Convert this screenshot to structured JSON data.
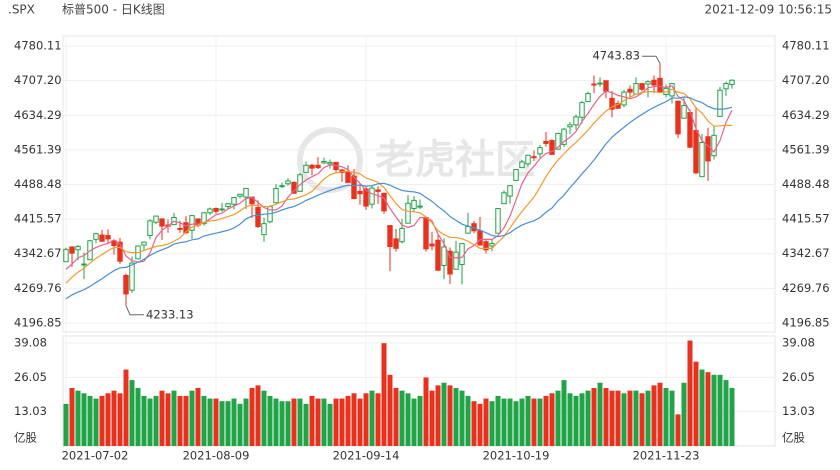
{
  "header": {
    "symbol": ".SPX",
    "name": "标普500 - 日K线图",
    "time": "2021-12-09 10:56:15"
  },
  "watermark": "老虎社区",
  "chart_data": [
    {
      "type": "candlestick",
      "up_color": "#21a348",
      "down_color": "#e8321e",
      "ylim": [
        4196.85,
        4780.11
      ],
      "yticks": [
        4196.85,
        4269.76,
        4342.67,
        4415.57,
        4488.48,
        4561.39,
        4634.29,
        {
          "value": 4707.2,
          "label": "4707.20"
        },
        4780.11
      ],
      "grid": true,
      "x": [
        "2021-07-02",
        null,
        null,
        null,
        null,
        null,
        null,
        null,
        null,
        null,
        null,
        null,
        null,
        null,
        null,
        null,
        null,
        null,
        null,
        null,
        null,
        null,
        null,
        null,
        null,
        "2021-08-09",
        null,
        null,
        null,
        null,
        null,
        null,
        null,
        null,
        null,
        null,
        null,
        null,
        null,
        null,
        null,
        null,
        null,
        null,
        null,
        null,
        null,
        null,
        null,
        null,
        "2021-09-14",
        null,
        null,
        null,
        null,
        null,
        null,
        null,
        null,
        null,
        null,
        null,
        null,
        null,
        null,
        null,
        null,
        null,
        null,
        null,
        null,
        null,
        null,
        null,
        null,
        "2021-10-19",
        null,
        null,
        null,
        null,
        null,
        null,
        null,
        null,
        null,
        null,
        null,
        null,
        null,
        null,
        null,
        null,
        null,
        null,
        null,
        null,
        null,
        null,
        null,
        null,
        "2021-11-23",
        null,
        null,
        null,
        null,
        null,
        null,
        null,
        null,
        null,
        null,
        null
      ],
      "ohlc": [
        [
          4326,
          4355,
          4326,
          4352
        ],
        [
          4357,
          4357,
          4315,
          4344
        ],
        [
          4351,
          4361,
          4329,
          4358
        ],
        [
          4321,
          4345,
          4289,
          4321
        ],
        [
          4330,
          4372,
          4330,
          4370
        ],
        [
          4373,
          4387,
          4365,
          4385
        ],
        [
          4382,
          4393,
          4368,
          4369
        ],
        [
          4381,
          4394,
          4363,
          4374
        ],
        [
          4370,
          4370,
          4341,
          4360
        ],
        [
          4367,
          4376,
          4321,
          4327
        ],
        [
          4297,
          4301,
          4233.13,
          4258
        ],
        [
          4266,
          4337,
          4260,
          4323
        ],
        [
          4332,
          4359,
          4331,
          4359
        ],
        [
          4361,
          4369,
          4350,
          4367
        ],
        [
          4381,
          4415,
          4373,
          4412
        ],
        [
          4409,
          4422,
          4405,
          4422
        ],
        [
          4416,
          4416,
          4372,
          4401
        ],
        [
          4403,
          4415,
          4387,
          4401
        ],
        [
          4404,
          4429,
          4404,
          4419
        ],
        [
          4396,
          4412,
          4387,
          4395
        ],
        [
          4408,
          4422,
          4385,
          4387
        ],
        [
          4392,
          4424,
          4374,
          4423
        ],
        [
          4416,
          4416,
          4399,
          4403
        ],
        [
          4406,
          4430,
          4402,
          4429
        ],
        [
          4429,
          4440,
          4424,
          4437
        ],
        [
          4438,
          4440,
          4427,
          4432
        ],
        [
          4436,
          4450,
          4431,
          4437
        ],
        [
          4442,
          4449,
          4437,
          4448
        ],
        [
          4447,
          4461,
          4436,
          4461
        ],
        [
          4464,
          4468,
          4459,
          4468
        ],
        [
          4462,
          4480,
          4437,
          4480
        ],
        [
          4462,
          4462,
          4418,
          4448
        ],
        [
          4440,
          4455,
          4397,
          4400
        ],
        [
          4383,
          4419,
          4368,
          4406
        ],
        [
          4410,
          4445,
          4407,
          4442
        ],
        [
          4450,
          4489,
          4450,
          4480
        ],
        [
          4485,
          4493,
          4481,
          4486
        ],
        [
          4490,
          4502,
          4486,
          4496
        ],
        [
          4493,
          4495,
          4469,
          4470
        ],
        [
          4474,
          4513,
          4473,
          4509
        ],
        [
          4514,
          4537,
          4514,
          4529
        ],
        [
          4529,
          4532,
          4508,
          4523
        ],
        [
          4529,
          4546,
          4521,
          4524
        ],
        [
          4534,
          4545,
          4531,
          4537
        ],
        [
          4532,
          4541,
          4522,
          4535
        ],
        [
          4535,
          4536,
          4513,
          4520
        ],
        [
          4519,
          4521,
          4494,
          4514
        ],
        [
          4514,
          4529,
          4493,
          4493
        ],
        [
          4506,
          4521,
          4457,
          4459
        ],
        [
          4474,
          4492,
          4446,
          4469
        ],
        [
          4479,
          4486,
          4435,
          4443
        ],
        [
          4447,
          4486,
          4438,
          4481
        ],
        [
          4477,
          4485,
          4448,
          4474
        ],
        [
          4470,
          4471,
          4427,
          4433
        ],
        [
          4402,
          4402,
          4306,
          4358
        ],
        [
          4374,
          4395,
          4347,
          4354
        ],
        [
          4368,
          4416,
          4364,
          4396
        ],
        [
          4407,
          4466,
          4407,
          4449
        ],
        [
          4438,
          4464,
          4430,
          4455
        ],
        [
          4442,
          4457,
          4437,
          4443
        ],
        [
          4419,
          4419,
          4347,
          4353
        ],
        [
          4363,
          4389,
          4350,
          4359
        ],
        [
          4371,
          4383,
          4306,
          4308
        ],
        [
          4318,
          4375,
          4289,
          4357
        ],
        [
          4348,
          4356,
          4279,
          4300
        ],
        [
          4310,
          4370,
          4310,
          4346
        ],
        [
          4320,
          4365,
          4278,
          4364
        ],
        [
          4386,
          4429,
          4386,
          4400
        ],
        [
          4406,
          4412,
          4386,
          4391
        ],
        [
          4391,
          4420,
          4361,
          4361
        ],
        [
          4368,
          4374,
          4343,
          4351
        ],
        [
          4359,
          4373,
          4348,
          4364
        ],
        [
          4386,
          4439,
          4386,
          4438
        ],
        [
          4448,
          4476,
          4448,
          4471
        ],
        [
          4464,
          4487,
          4448,
          4486
        ],
        [
          4497,
          4520,
          4497,
          4520
        ],
        [
          4524,
          4540,
          4524,
          4536
        ],
        [
          4532,
          4551,
          4526,
          4550
        ],
        [
          4547,
          4560,
          4538,
          4545
        ],
        [
          4553,
          4572,
          4545,
          4566
        ],
        [
          4579,
          4599,
          4568,
          4575
        ],
        [
          4581,
          4584,
          4551,
          4552
        ],
        [
          4563,
          4598,
          4563,
          4596
        ],
        [
          4573,
          4608,
          4567,
          4605
        ],
        [
          4610,
          4620,
          4595,
          4614
        ],
        [
          4614,
          4636,
          4604,
          4631
        ],
        [
          4630,
          4664,
          4617,
          4661
        ],
        [
          4663,
          4684,
          4663,
          4680
        ],
        [
          4700,
          4718,
          4681,
          4698
        ],
        [
          4701,
          4714,
          4694,
          4702
        ],
        [
          4707,
          4708,
          4670,
          4685
        ],
        [
          4670,
          4685,
          4630,
          4647
        ],
        [
          4659,
          4665,
          4648,
          4649
        ],
        [
          4656,
          4688,
          4651,
          4683
        ],
        [
          4689,
          4697,
          4673,
          4683
        ],
        [
          4679,
          4714,
          4679,
          4701
        ],
        [
          4701,
          4701,
          4684,
          4689
        ],
        [
          4700,
          4708,
          4672,
          4705
        ],
        [
          4708,
          4718,
          4681,
          4698
        ],
        [
          4712,
          4743.83,
          4683,
          4683
        ],
        [
          4678,
          4699,
          4672,
          4691
        ],
        [
          4675,
          4702,
          4659,
          4701
        ],
        [
          4664,
          4664,
          4586,
          4595
        ],
        [
          4628,
          4673,
          4628,
          4655
        ],
        [
          4640,
          4647,
          4565,
          4567
        ],
        [
          4602,
          4652,
          4510,
          4513
        ],
        [
          4505,
          4595,
          4504,
          4577
        ],
        [
          4589,
          4608,
          4496,
          4538
        ],
        [
          4549,
          4613,
          4541,
          4592
        ],
        [
          4632,
          4694,
          4632,
          4687
        ],
        [
          4690,
          4705,
          4675,
          4701
        ],
        [
          4699,
          4710,
          4690,
          4708
        ]
      ],
      "series": [
        {
          "color": "#e8628e",
          "values": [
            4310,
            4321,
            4334,
            4339,
            4349,
            4356,
            4361,
            4364,
            4372,
            4363,
            4338,
            4328,
            4325,
            4327,
            4344,
            4377,
            4392,
            4401,
            4411,
            4408,
            4401,
            4405,
            4405,
            4407,
            4416,
            4425,
            4428,
            4437,
            4443,
            4449,
            4459,
            4461,
            4451,
            4440,
            4435,
            4435,
            4443,
            4462,
            4475,
            4488,
            4498,
            4505,
            4511,
            4524,
            4530,
            4528,
            4526,
            4520,
            4504,
            4491,
            4476,
            4469,
            4465,
            4460,
            4438,
            4420,
            4403,
            4398,
            4402,
            4419,
            4419,
            4412,
            4384,
            4364,
            4335,
            4334,
            4335,
            4353,
            4360,
            4372,
            4373,
            4373,
            4381,
            4397,
            4422,
            4456,
            4490,
            4513,
            4527,
            4543,
            4554,
            4558,
            4567,
            4579,
            4588,
            4600,
            4621,
            4638,
            4657,
            4674,
            4685,
            4682,
            4676,
            4673,
            4669,
            4673,
            4681,
            4692,
            4695,
            4695,
            4693,
            4696,
            4674,
            4665,
            4642,
            4606,
            4581,
            4570,
            4557,
            4581,
            4619,
            4645
          ]
        },
        {
          "color": "#f39b2e",
          "values": [
            4281,
            4293,
            4304,
            4312,
            4323,
            4333,
            4341,
            4349,
            4356,
            4356,
            4347,
            4345,
            4345,
            4350,
            4354,
            4358,
            4360,
            4363,
            4369,
            4376,
            4389,
            4399,
            4403,
            4409,
            4412,
            4413,
            4417,
            4421,
            4425,
            4433,
            4442,
            4445,
            4444,
            4442,
            4442,
            4447,
            4452,
            4457,
            4458,
            4462,
            4467,
            4474,
            4487,
            4500,
            4509,
            4513,
            4516,
            4516,
            4514,
            4511,
            4502,
            4498,
            4493,
            4482,
            4465,
            4448,
            4436,
            4432,
            4431,
            4429,
            4420,
            4408,
            4391,
            4383,
            4377,
            4377,
            4374,
            4369,
            4362,
            4354,
            4354,
            4354,
            4367,
            4379,
            4397,
            4415,
            4432,
            4447,
            4462,
            4483,
            4505,
            4524,
            4540,
            4553,
            4566,
            4577,
            4590,
            4603,
            4618,
            4631,
            4643,
            4652,
            4657,
            4665,
            4672,
            4679,
            4682,
            4684,
            4684,
            4682,
            4683,
            4689,
            4683,
            4680,
            4669,
            4650,
            4639,
            4622,
            4611,
            4612,
            4613,
            4613
          ]
        },
        {
          "color": "#4a8fd6",
          "values": [
            4248,
            4256,
            4262,
            4267,
            4274,
            4282,
            4290,
            4299,
            4307,
            4313,
            4314,
            4319,
            4325,
            4331,
            4339,
            4346,
            4351,
            4356,
            4363,
            4366,
            4368,
            4372,
            4374,
            4380,
            4383,
            4386,
            4389,
            4392,
            4397,
            4405,
            4416,
            4422,
            4424,
            4426,
            4427,
            4430,
            4435,
            4439,
            4442,
            4448,
            4455,
            4460,
            4466,
            4471,
            4476,
            4480,
            4484,
            4487,
            4486,
            4487,
            4485,
            4486,
            4490,
            4491,
            4487,
            4481,
            4476,
            4474,
            4473,
            4470,
            4461,
            4453,
            4442,
            4433,
            4421,
            4413,
            4405,
            4401,
            4397,
            4392,
            4387,
            4381,
            4379,
            4381,
            4387,
            4396,
            4403,
            4408,
            4412,
            4419,
            4430,
            4439,
            4454,
            4466,
            4482,
            4496,
            4511,
            4525,
            4540,
            4557,
            4574,
            4588,
            4599,
            4609,
            4619,
            4628,
            4636,
            4644,
            4651,
            4657,
            4663,
            4671,
            4670,
            4673,
            4671,
            4665,
            4661,
            4653,
            4648,
            4647,
            4648,
            4651
          ]
        }
      ]
    },
    {
      "type": "bar",
      "ylabel": "亿股",
      "ylim": [
        0,
        39.08
      ],
      "yticks": [
        13.03,
        26.05,
        39.08
      ],
      "grid": true,
      "values": [
        16,
        22,
        21,
        20,
        19,
        18,
        19,
        20,
        21,
        20,
        29,
        25,
        22,
        19,
        18,
        19,
        21,
        20,
        21,
        19,
        19,
        21,
        22,
        19,
        18,
        18,
        17,
        17,
        18,
        16,
        18,
        22,
        23,
        21,
        19,
        18,
        17,
        17,
        18,
        18,
        16,
        19,
        18,
        18,
        16,
        18,
        18,
        19,
        20,
        18,
        20,
        21,
        20,
        39,
        27,
        22,
        21,
        20,
        18,
        19,
        26,
        21,
        23,
        24,
        23,
        22,
        21,
        19,
        17,
        16,
        18,
        17,
        19,
        18,
        18,
        17,
        18,
        19,
        18,
        18,
        19,
        20,
        21,
        25,
        20,
        19,
        20,
        21,
        22,
        24,
        22,
        21,
        21,
        20,
        21,
        21,
        20,
        21,
        23,
        24,
        22,
        21,
        12,
        24,
        40,
        32,
        29,
        28,
        27,
        27,
        25,
        22
      ]
    }
  ]
}
